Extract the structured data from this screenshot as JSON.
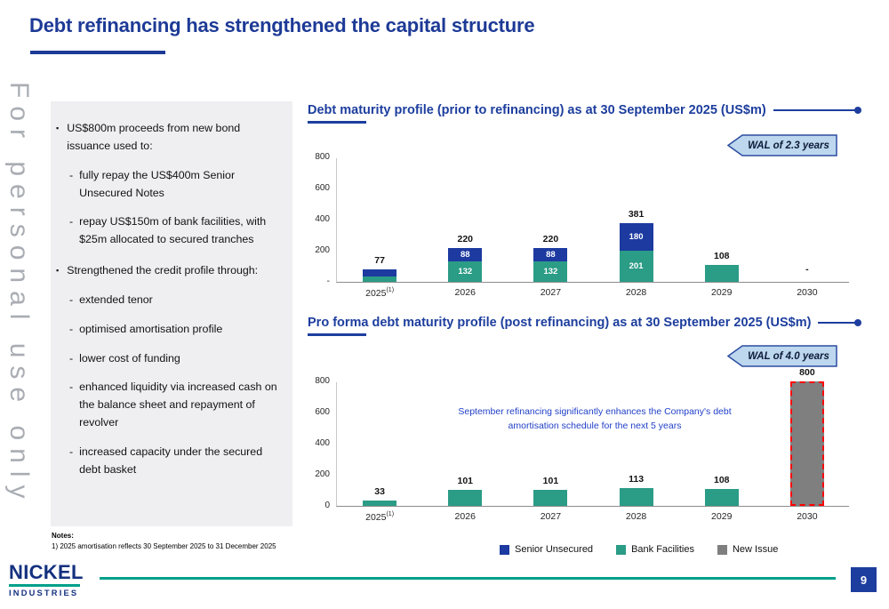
{
  "slide": {
    "title": "Debt refinancing has strengthened the capital structure",
    "watermark": "For personal use only",
    "page_number": "9"
  },
  "sidebar": {
    "bullets": [
      {
        "level": 1,
        "text": "US$800m proceeds from new bond issuance used to:"
      },
      {
        "level": 2,
        "text": "fully repay the US$400m Senior Unsecured Notes"
      },
      {
        "level": 2,
        "text": "repay US$150m of bank facilities, with $25m allocated to secured tranches"
      },
      {
        "level": 1,
        "text": "Strengthened the credit profile through:"
      },
      {
        "level": 2,
        "text": "extended tenor"
      },
      {
        "level": 2,
        "text": "optimised amortisation profile"
      },
      {
        "level": 2,
        "text": "lower cost of funding"
      },
      {
        "level": 2,
        "text": "enhanced liquidity via increased cash on the balance sheet and repayment of revolver"
      },
      {
        "level": 2,
        "text": "increased capacity under the secured debt basket"
      }
    ],
    "notes_label": "Notes:",
    "note": "1)  2025 amortisation reflects 30 September 2025 to 31 December 2025"
  },
  "chart_data": [
    {
      "type": "bar",
      "stacked": true,
      "title": "Debt maturity profile (prior to refinancing) as at 30 September 2025 (US$m)",
      "badge": "WAL of 2.3 years",
      "categories": [
        "2025",
        "2026",
        "2027",
        "2028",
        "2029",
        "2030"
      ],
      "category_superscripts": [
        "(1)",
        "",
        "",
        "",
        "",
        ""
      ],
      "series": [
        {
          "name": "Bank Facilities",
          "color": "#2b9c86",
          "values": [
            33,
            132,
            132,
            201,
            108,
            0
          ],
          "labels": [
            "",
            "132",
            "132",
            "201",
            "",
            ""
          ]
        },
        {
          "name": "Senior Unsecured",
          "color": "#1c3aa0",
          "values": [
            44,
            88,
            88,
            180,
            0,
            0
          ],
          "labels": [
            "",
            "88",
            "88",
            "180",
            "",
            ""
          ]
        }
      ],
      "totals": [
        "77",
        "220",
        "220",
        "381",
        "108",
        "-"
      ],
      "ylim": [
        0,
        800
      ],
      "yticks": [
        "800",
        "600",
        "400",
        "200",
        "-"
      ],
      "grid": false,
      "legend_position": "shared-bottom"
    },
    {
      "type": "bar",
      "stacked": true,
      "title": "Pro forma debt maturity profile (post refinancing) as at 30 September 2025 (US$m)",
      "badge": "WAL of 4.0 years",
      "categories": [
        "2025",
        "2026",
        "2027",
        "2028",
        "2029",
        "2030"
      ],
      "category_superscripts": [
        "(1)",
        "",
        "",
        "",
        "",
        ""
      ],
      "series": [
        {
          "name": "Bank Facilities",
          "color": "#2b9c86",
          "values": [
            33,
            101,
            101,
            113,
            108,
            0
          ],
          "labels": [
            "",
            "",
            "",
            "",
            "",
            ""
          ]
        },
        {
          "name": "New Issue",
          "color": "#7f7f7f",
          "values": [
            0,
            0,
            0,
            0,
            0,
            800
          ],
          "labels": [
            "",
            "",
            "",
            "",
            "",
            ""
          ],
          "dashed_border": "#ff0000"
        }
      ],
      "totals": [
        "33",
        "101",
        "101",
        "113",
        "108",
        "800"
      ],
      "annotation": "September refinancing significantly enhances the Company's debt amortisation schedule for the next 5 years",
      "ylim": [
        0,
        800
      ],
      "yticks": [
        "800",
        "600",
        "400",
        "200",
        "0"
      ],
      "grid": false,
      "legend_position": "shared-bottom"
    }
  ],
  "legend": [
    {
      "label": "Senior Unsecured",
      "color": "#1c3aa0"
    },
    {
      "label": "Bank Facilities",
      "color": "#2b9c86"
    },
    {
      "label": "New Issue",
      "color": "#7f7f7f"
    }
  ],
  "footer": {
    "brand_line1": "NICKEL",
    "brand_line2": "INDUSTRIES"
  },
  "colors": {
    "title_blue": "#1d3a96",
    "chart_blue": "#1d3e9e",
    "teal": "#2b9c86",
    "navy": "#1c3aa0",
    "gray_bar": "#7f7f7f",
    "badge_fill": "#bdd7ee",
    "badge_border": "#2c4da0",
    "annotation_blue": "#2140c8",
    "footer_teal": "#00a08a",
    "dashed_red": "#ff0000"
  }
}
